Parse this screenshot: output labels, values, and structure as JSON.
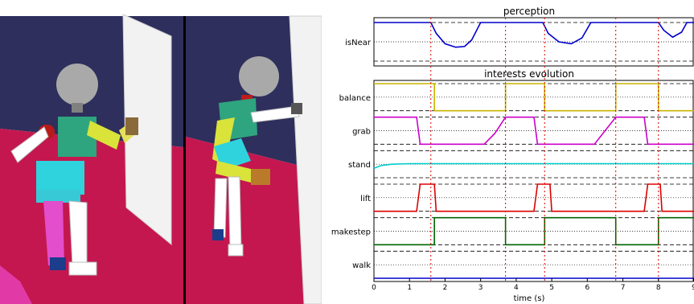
{
  "scene": {
    "description_colors": {
      "wall": "#2e2f5c",
      "floor": "#c4174f",
      "door": "#f4f4f4",
      "divider": "#000000"
    }
  },
  "chart_data": [
    {
      "type": "line",
      "title": "perception",
      "xlim": [
        0,
        9
      ],
      "grid_dashed_levels": true,
      "series": [
        {
          "name": "isNear",
          "color": "#0000cc",
          "points": [
            [
              0,
              1
            ],
            [
              1.6,
              1
            ],
            [
              1.75,
              0.72
            ],
            [
              2.0,
              0.45
            ],
            [
              2.3,
              0.36
            ],
            [
              2.55,
              0.38
            ],
            [
              2.75,
              0.55
            ],
            [
              3.0,
              1
            ],
            [
              4.75,
              1
            ],
            [
              4.9,
              0.72
            ],
            [
              5.2,
              0.5
            ],
            [
              5.55,
              0.45
            ],
            [
              5.85,
              0.6
            ],
            [
              6.1,
              1
            ],
            [
              8.0,
              1
            ],
            [
              8.15,
              0.8
            ],
            [
              8.4,
              0.62
            ],
            [
              8.65,
              0.75
            ],
            [
              8.8,
              1
            ],
            [
              9.0,
              1
            ]
          ]
        }
      ]
    },
    {
      "type": "line",
      "title": "interests evolution",
      "xlabel": "time (s)",
      "xlim": [
        0,
        9
      ],
      "xticks": [
        "0",
        "1",
        "2",
        "3",
        "4",
        "5",
        "6",
        "7",
        "8",
        "9"
      ],
      "event_lines_x": [
        1.6,
        3.7,
        4.8,
        6.8,
        8.0
      ],
      "event_lines_color": "#dd0000",
      "series": [
        {
          "name": "balance",
          "color": "#c8b400",
          "points": [
            [
              0,
              1
            ],
            [
              1.7,
              1
            ],
            [
              1.7,
              0
            ],
            [
              3.7,
              0
            ],
            [
              3.7,
              1
            ],
            [
              4.8,
              1
            ],
            [
              4.8,
              0
            ],
            [
              6.8,
              0
            ],
            [
              6.8,
              1
            ],
            [
              8.0,
              1
            ],
            [
              8.0,
              0
            ],
            [
              9,
              0
            ]
          ]
        },
        {
          "name": "grab",
          "color": "#cc00cc",
          "points": [
            [
              0,
              1
            ],
            [
              1.2,
              1
            ],
            [
              1.3,
              0
            ],
            [
              3.1,
              0
            ],
            [
              3.4,
              0.4
            ],
            [
              3.6,
              0.8
            ],
            [
              3.7,
              1
            ],
            [
              4.5,
              1
            ],
            [
              4.6,
              0
            ],
            [
              6.2,
              0
            ],
            [
              6.5,
              0.5
            ],
            [
              6.8,
              1
            ],
            [
              7.6,
              1
            ],
            [
              7.7,
              0
            ],
            [
              9,
              0
            ]
          ]
        },
        {
          "name": "stand",
          "color": "#00cccc",
          "points": [
            [
              0,
              0.35
            ],
            [
              0.2,
              0.45
            ],
            [
              0.5,
              0.5
            ],
            [
              1,
              0.52
            ],
            [
              9,
              0.52
            ]
          ]
        },
        {
          "name": "lift",
          "color": "#dd0000",
          "points": [
            [
              0,
              0
            ],
            [
              1.2,
              0
            ],
            [
              1.3,
              1
            ],
            [
              1.7,
              1
            ],
            [
              1.75,
              0
            ],
            [
              4.5,
              0
            ],
            [
              4.6,
              1
            ],
            [
              4.95,
              1
            ],
            [
              5.0,
              0
            ],
            [
              7.6,
              0
            ],
            [
              7.7,
              1
            ],
            [
              8.05,
              1
            ],
            [
              8.1,
              0
            ],
            [
              9,
              0
            ]
          ]
        },
        {
          "name": "makestep",
          "color": "#006600",
          "points": [
            [
              0,
              0
            ],
            [
              1.7,
              0
            ],
            [
              1.7,
              1
            ],
            [
              3.7,
              1
            ],
            [
              3.7,
              0
            ],
            [
              4.8,
              0
            ],
            [
              4.8,
              1
            ],
            [
              6.8,
              1
            ],
            [
              6.8,
              0
            ],
            [
              8.0,
              0
            ],
            [
              8.0,
              1
            ],
            [
              9,
              1
            ]
          ]
        },
        {
          "name": "walk",
          "color": "#0000cc",
          "points": [
            [
              0,
              0
            ],
            [
              9,
              0
            ]
          ]
        }
      ]
    }
  ]
}
